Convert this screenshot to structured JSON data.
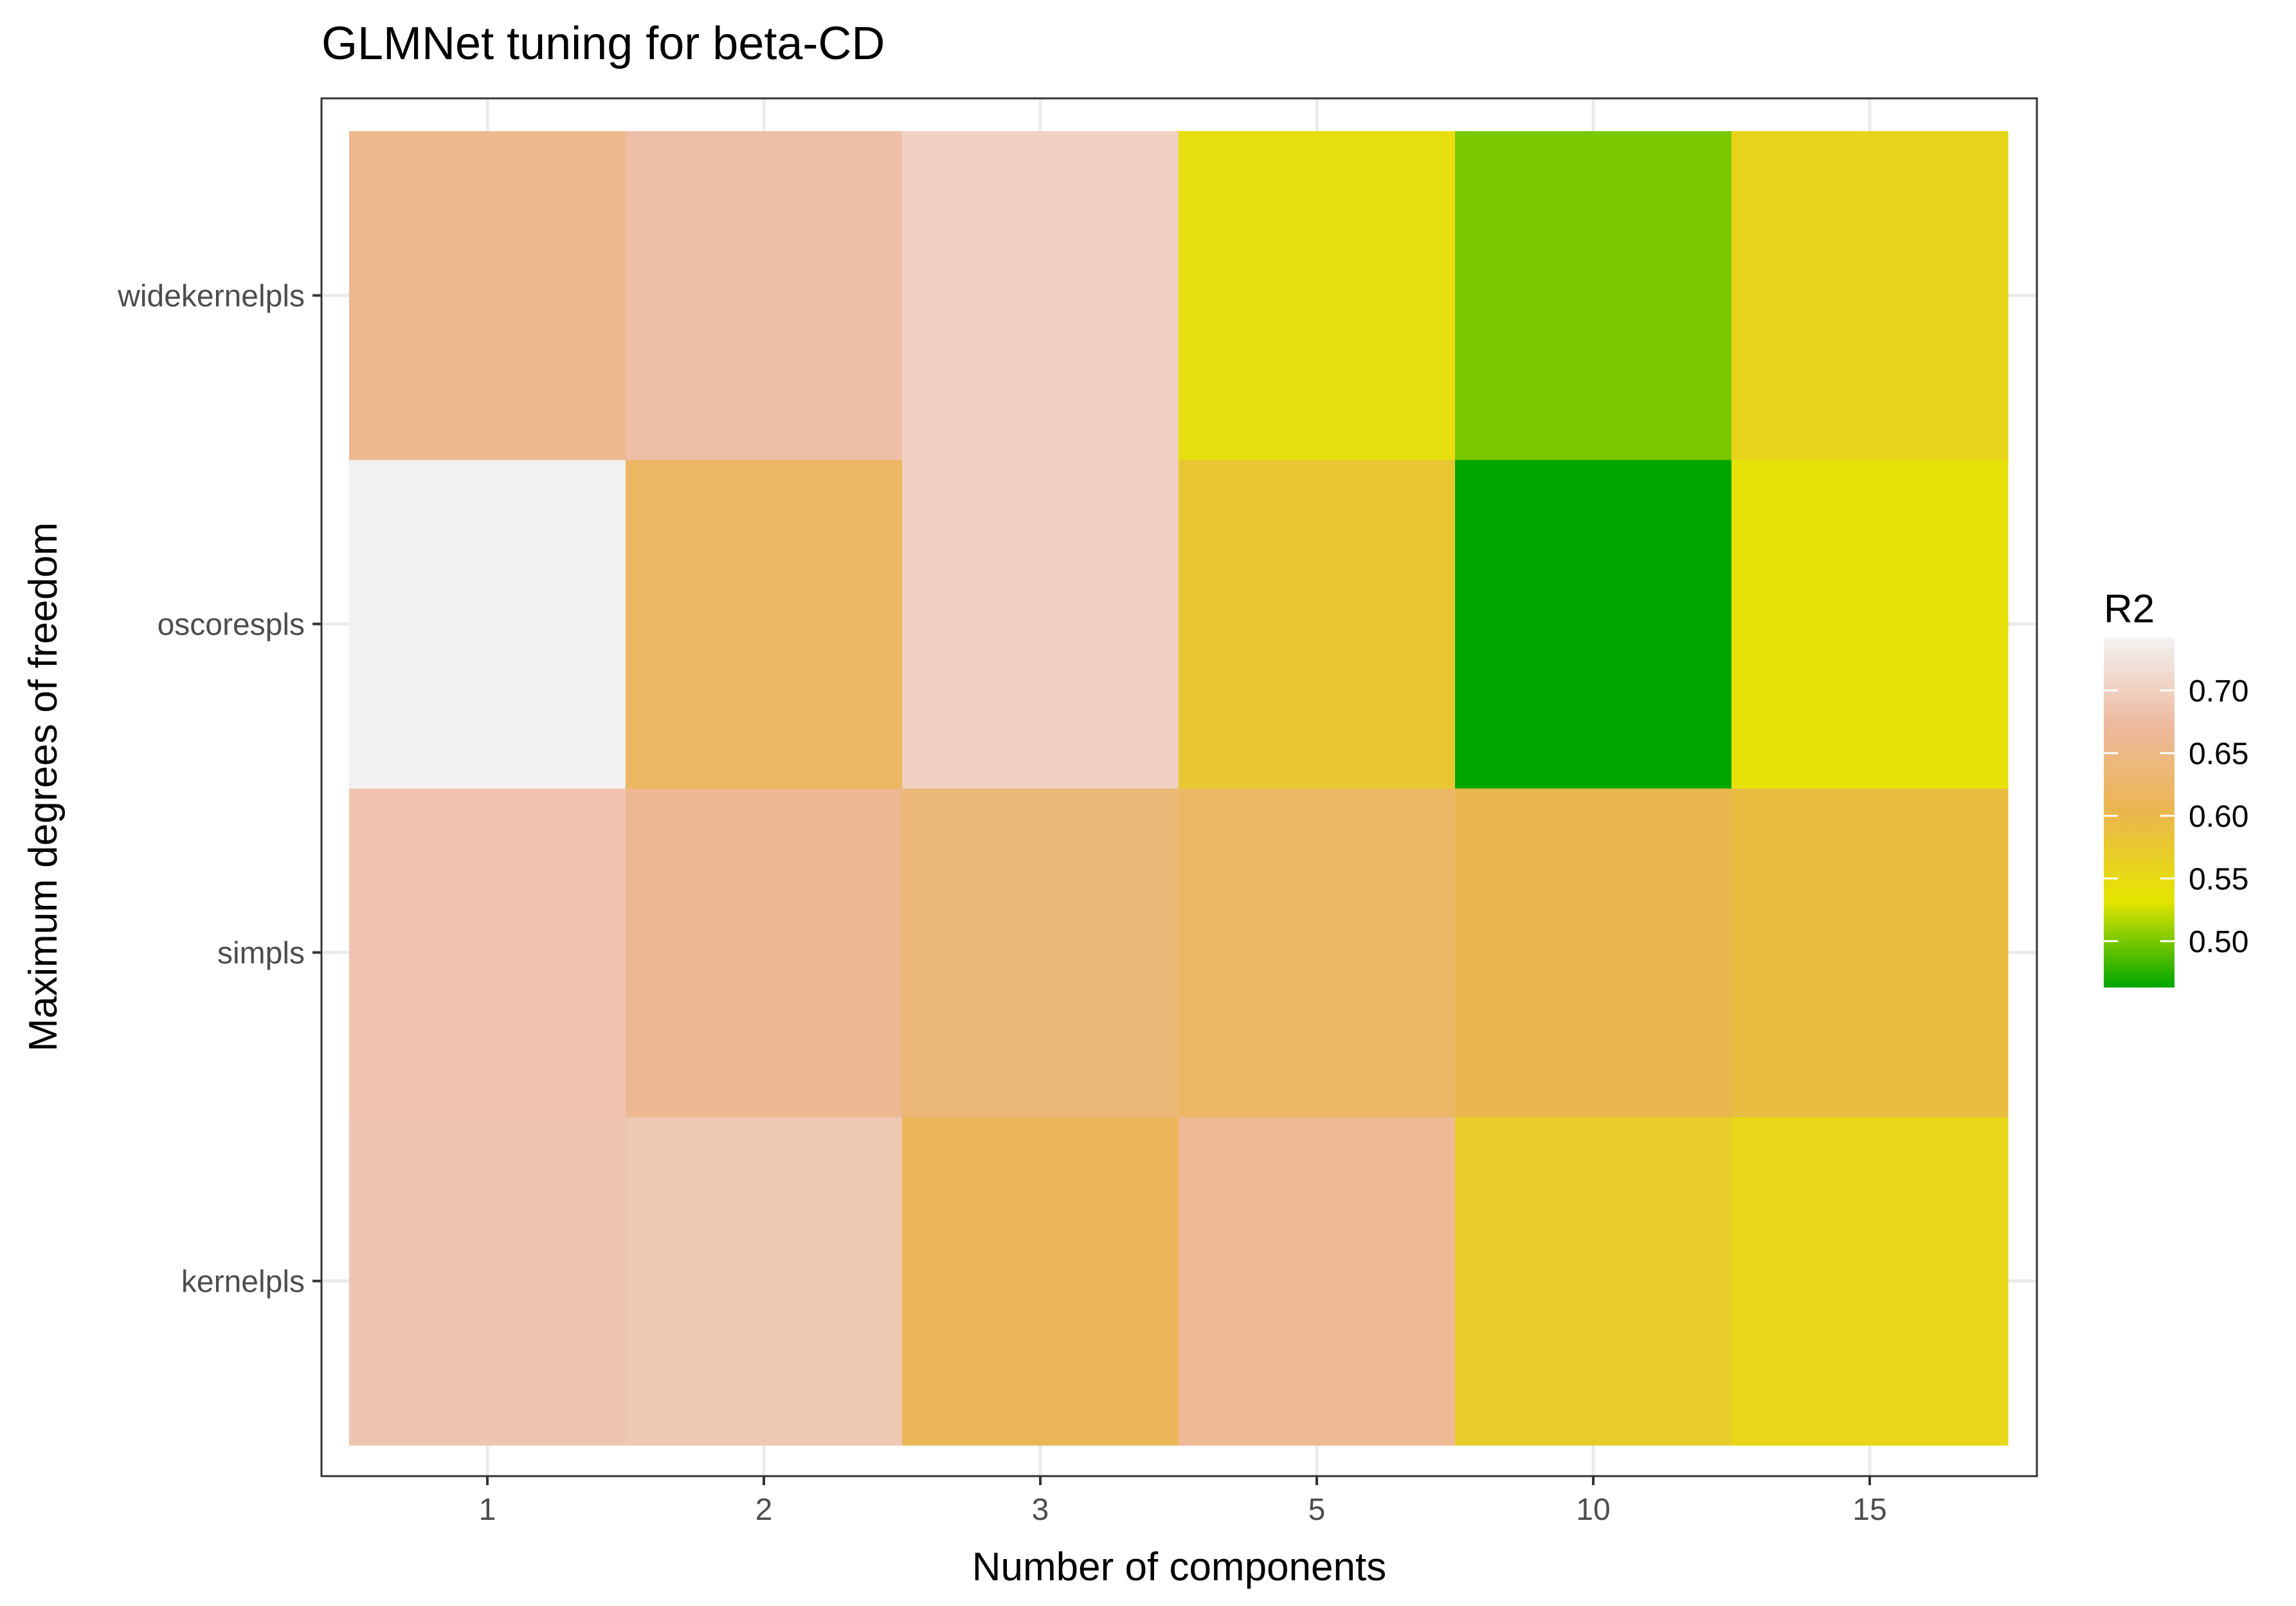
{
  "chart_data": {
    "type": "heatmap",
    "title": "GLMNet tuning for beta-CD",
    "xlabel": "Number of components",
    "ylabel": "Maximum degrees of freedom",
    "x_categories": [
      "1",
      "2",
      "3",
      "5",
      "10",
      "15"
    ],
    "y_categories": [
      "kernelpls",
      "simpls",
      "oscorespls",
      "widekernelpls"
    ],
    "values": [
      [
        0.687,
        0.69,
        0.612,
        0.664,
        0.571,
        0.554
      ],
      [
        0.685,
        0.66,
        0.638,
        0.622,
        0.602,
        0.592
      ],
      [
        0.74,
        0.62,
        0.7,
        0.578,
        0.463,
        0.54
      ],
      [
        0.658,
        0.68,
        0.7,
        0.545,
        0.5,
        0.558
      ]
    ],
    "legend": {
      "title": "R2",
      "position": "right",
      "range": [
        0.463,
        0.742
      ],
      "ticks": [
        0.5,
        0.55,
        0.6,
        0.65,
        0.7
      ],
      "tick_labels": [
        "0.50",
        "0.55",
        "0.60",
        "0.65",
        "0.70"
      ],
      "colors": [
        "#00A600",
        "#E6E600",
        "#EAB64E",
        "#EEB99F",
        "#F2F2F2"
      ]
    },
    "grid": true
  }
}
